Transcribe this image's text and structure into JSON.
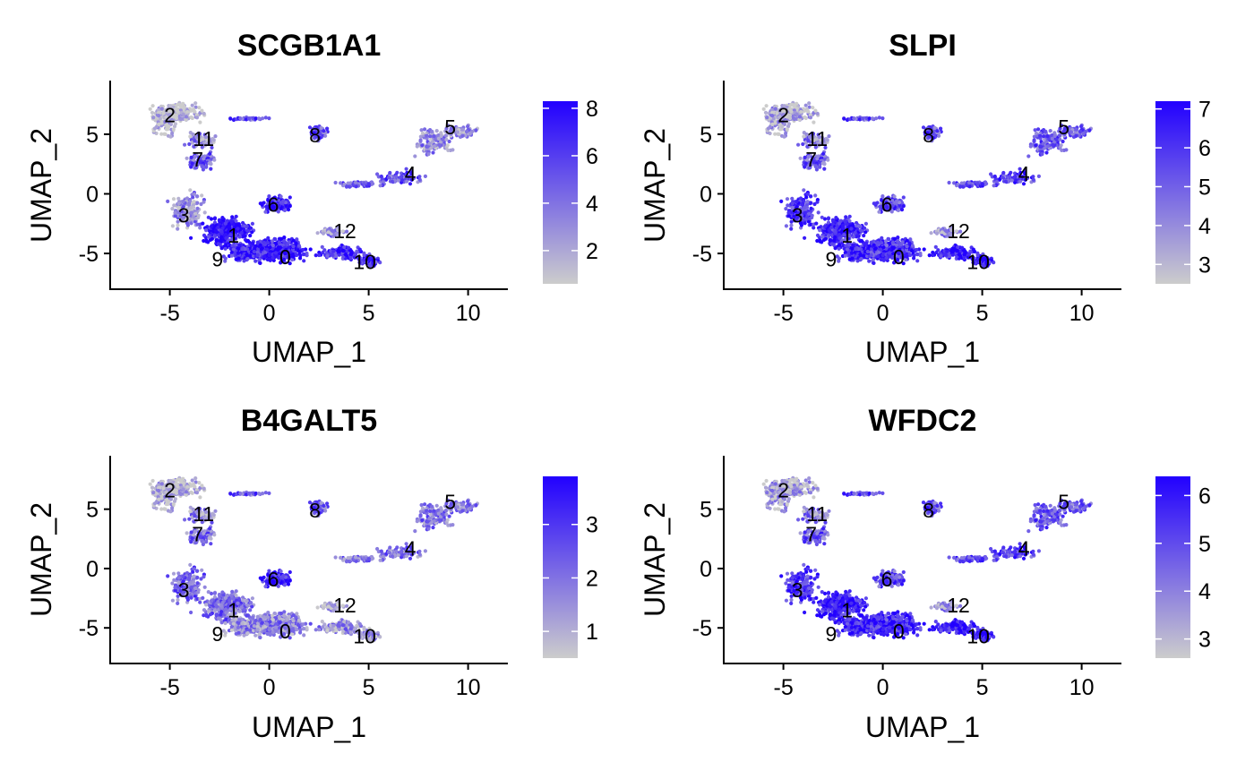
{
  "colors": {
    "low": "#cccccc",
    "high": "#2200ff",
    "axis": "#000000",
    "background": "#ffffff"
  },
  "chart_data": [
    {
      "type": "scatter",
      "title": "SCGB1A1",
      "xlabel": "UMAP_1",
      "ylabel": "UMAP_2",
      "xlim": [
        -8,
        12
      ],
      "ylim": [
        -8,
        9.5
      ],
      "x_ticks": [
        -5,
        0,
        5,
        10
      ],
      "y_ticks": [
        -5,
        0,
        5
      ],
      "x_tick_labels": [
        "-5",
        "0",
        "5",
        "10"
      ],
      "y_tick_labels": [
        "-5",
        "0",
        "5"
      ],
      "legend": {
        "position": "right",
        "min": 0.6,
        "max": 8.3,
        "ticks": [
          2,
          4,
          6,
          8
        ],
        "tick_labels": [
          "2",
          "4",
          "6",
          "8"
        ]
      },
      "cluster_labels": [
        {
          "label": "0",
          "x": 0.8,
          "y": -5.3
        },
        {
          "label": "1",
          "x": -1.8,
          "y": -3.5
        },
        {
          "label": "2",
          "x": -5.0,
          "y": 6.6
        },
        {
          "label": "3",
          "x": -4.3,
          "y": -1.8
        },
        {
          "label": "4",
          "x": 7.1,
          "y": 1.7
        },
        {
          "label": "5",
          "x": 9.1,
          "y": 5.6
        },
        {
          "label": "6",
          "x": 0.2,
          "y": -0.9
        },
        {
          "label": "7",
          "x": -3.6,
          "y": 2.9
        },
        {
          "label": "8",
          "x": 2.3,
          "y": 4.9
        },
        {
          "label": "9",
          "x": -2.6,
          "y": -5.5
        },
        {
          "label": "10",
          "x": 4.8,
          "y": -5.7
        },
        {
          "label": "11",
          "x": -3.3,
          "y": 4.6
        },
        {
          "label": "12",
          "x": 3.8,
          "y": -3.1
        }
      ],
      "cluster_expression": {
        "0": 0.85,
        "1": 0.9,
        "2": 0.05,
        "3": 0.3,
        "4": 0.6,
        "5": 0.3,
        "6": 0.8,
        "7": 0.55,
        "8": 0.6,
        "9": 0.85,
        "10": 0.8,
        "11": 0.3,
        "12": 0.3
      }
    },
    {
      "type": "scatter",
      "title": "SLPI",
      "xlabel": "UMAP_1",
      "ylabel": "UMAP_2",
      "xlim": [
        -8,
        12
      ],
      "ylim": [
        -8,
        9.5
      ],
      "x_ticks": [
        -5,
        0,
        5,
        10
      ],
      "y_ticks": [
        -5,
        0,
        5
      ],
      "x_tick_labels": [
        "-5",
        "0",
        "5",
        "10"
      ],
      "y_tick_labels": [
        "-5",
        "0",
        "5"
      ],
      "legend": {
        "position": "right",
        "min": 2.5,
        "max": 7.2,
        "ticks": [
          3,
          4,
          5,
          6,
          7
        ],
        "tick_labels": [
          "3",
          "4",
          "5",
          "6",
          "7"
        ]
      },
      "cluster_labels": [
        {
          "label": "0",
          "x": 0.8,
          "y": -5.3
        },
        {
          "label": "1",
          "x": -1.8,
          "y": -3.5
        },
        {
          "label": "2",
          "x": -5.0,
          "y": 6.6
        },
        {
          "label": "3",
          "x": -4.3,
          "y": -1.8
        },
        {
          "label": "4",
          "x": 7.1,
          "y": 1.7
        },
        {
          "label": "5",
          "x": 9.1,
          "y": 5.6
        },
        {
          "label": "6",
          "x": 0.2,
          "y": -0.9
        },
        {
          "label": "7",
          "x": -3.6,
          "y": 2.9
        },
        {
          "label": "8",
          "x": 2.3,
          "y": 4.9
        },
        {
          "label": "9",
          "x": -2.6,
          "y": -5.5
        },
        {
          "label": "10",
          "x": 4.8,
          "y": -5.7
        },
        {
          "label": "11",
          "x": -3.3,
          "y": 4.6
        },
        {
          "label": "12",
          "x": 3.8,
          "y": -3.1
        }
      ],
      "cluster_expression": {
        "0": 0.75,
        "1": 0.8,
        "2": 0.15,
        "3": 0.75,
        "4": 0.7,
        "5": 0.55,
        "6": 0.6,
        "7": 0.55,
        "8": 0.6,
        "9": 0.85,
        "10": 0.9,
        "11": 0.35,
        "12": 0.3
      }
    },
    {
      "type": "scatter",
      "title": "B4GALT5",
      "xlabel": "UMAP_1",
      "ylabel": "UMAP_2",
      "xlim": [
        -8,
        12
      ],
      "ylim": [
        -8,
        9.5
      ],
      "x_ticks": [
        -5,
        0,
        5,
        10
      ],
      "y_ticks": [
        -5,
        0,
        5
      ],
      "x_tick_labels": [
        "-5",
        "0",
        "5",
        "10"
      ],
      "y_tick_labels": [
        "-5",
        "0",
        "5"
      ],
      "legend": {
        "position": "right",
        "min": 0.5,
        "max": 3.9,
        "ticks": [
          1,
          2,
          3
        ],
        "tick_labels": [
          "1",
          "2",
          "3"
        ]
      },
      "cluster_labels": [
        {
          "label": "0",
          "x": 0.8,
          "y": -5.3
        },
        {
          "label": "1",
          "x": -1.8,
          "y": -3.5
        },
        {
          "label": "2",
          "x": -5.0,
          "y": 6.6
        },
        {
          "label": "3",
          "x": -4.3,
          "y": -1.8
        },
        {
          "label": "4",
          "x": 7.1,
          "y": 1.7
        },
        {
          "label": "5",
          "x": 9.1,
          "y": 5.6
        },
        {
          "label": "6",
          "x": 0.2,
          "y": -0.9
        },
        {
          "label": "7",
          "x": -3.6,
          "y": 2.9
        },
        {
          "label": "8",
          "x": 2.3,
          "y": 4.9
        },
        {
          "label": "9",
          "x": -2.6,
          "y": -5.5
        },
        {
          "label": "10",
          "x": 4.8,
          "y": -5.7
        },
        {
          "label": "11",
          "x": -3.3,
          "y": 4.6
        },
        {
          "label": "12",
          "x": 3.8,
          "y": -3.1
        }
      ],
      "cluster_expression": {
        "0": 0.35,
        "1": 0.45,
        "2": 0.1,
        "3": 0.5,
        "4": 0.45,
        "5": 0.4,
        "6": 0.8,
        "7": 0.45,
        "8": 0.55,
        "9": 0.35,
        "10": 0.3,
        "11": 0.3,
        "12": 0.15
      }
    },
    {
      "type": "scatter",
      "title": "WFDC2",
      "xlabel": "UMAP_1",
      "ylabel": "UMAP_2",
      "xlim": [
        -8,
        12
      ],
      "ylim": [
        -8,
        9.5
      ],
      "x_ticks": [
        -5,
        0,
        5,
        10
      ],
      "y_ticks": [
        -5,
        0,
        5
      ],
      "x_tick_labels": [
        "-5",
        "0",
        "5",
        "10"
      ],
      "y_tick_labels": [
        "-5",
        "0",
        "5"
      ],
      "legend": {
        "position": "right",
        "min": 2.6,
        "max": 6.4,
        "ticks": [
          3,
          4,
          5,
          6
        ],
        "tick_labels": [
          "3",
          "4",
          "5",
          "6"
        ]
      },
      "cluster_labels": [
        {
          "label": "0",
          "x": 0.8,
          "y": -5.3
        },
        {
          "label": "1",
          "x": -1.8,
          "y": -3.5
        },
        {
          "label": "2",
          "x": -5.0,
          "y": 6.6
        },
        {
          "label": "3",
          "x": -4.3,
          "y": -1.8
        },
        {
          "label": "4",
          "x": 7.1,
          "y": 1.7
        },
        {
          "label": "5",
          "x": 9.1,
          "y": 5.6
        },
        {
          "label": "6",
          "x": 0.2,
          "y": -0.9
        },
        {
          "label": "7",
          "x": -3.6,
          "y": 2.9
        },
        {
          "label": "8",
          "x": 2.3,
          "y": 4.9
        },
        {
          "label": "9",
          "x": -2.6,
          "y": -5.5
        },
        {
          "label": "10",
          "x": 4.8,
          "y": -5.7
        },
        {
          "label": "11",
          "x": -3.3,
          "y": 4.6
        },
        {
          "label": "12",
          "x": 3.8,
          "y": -3.1
        }
      ],
      "cluster_expression": {
        "0": 0.8,
        "1": 0.85,
        "2": 0.2,
        "3": 0.75,
        "4": 0.7,
        "5": 0.55,
        "6": 0.6,
        "7": 0.55,
        "8": 0.6,
        "9": 0.85,
        "10": 0.9,
        "11": 0.35,
        "12": 0.3
      }
    }
  ]
}
